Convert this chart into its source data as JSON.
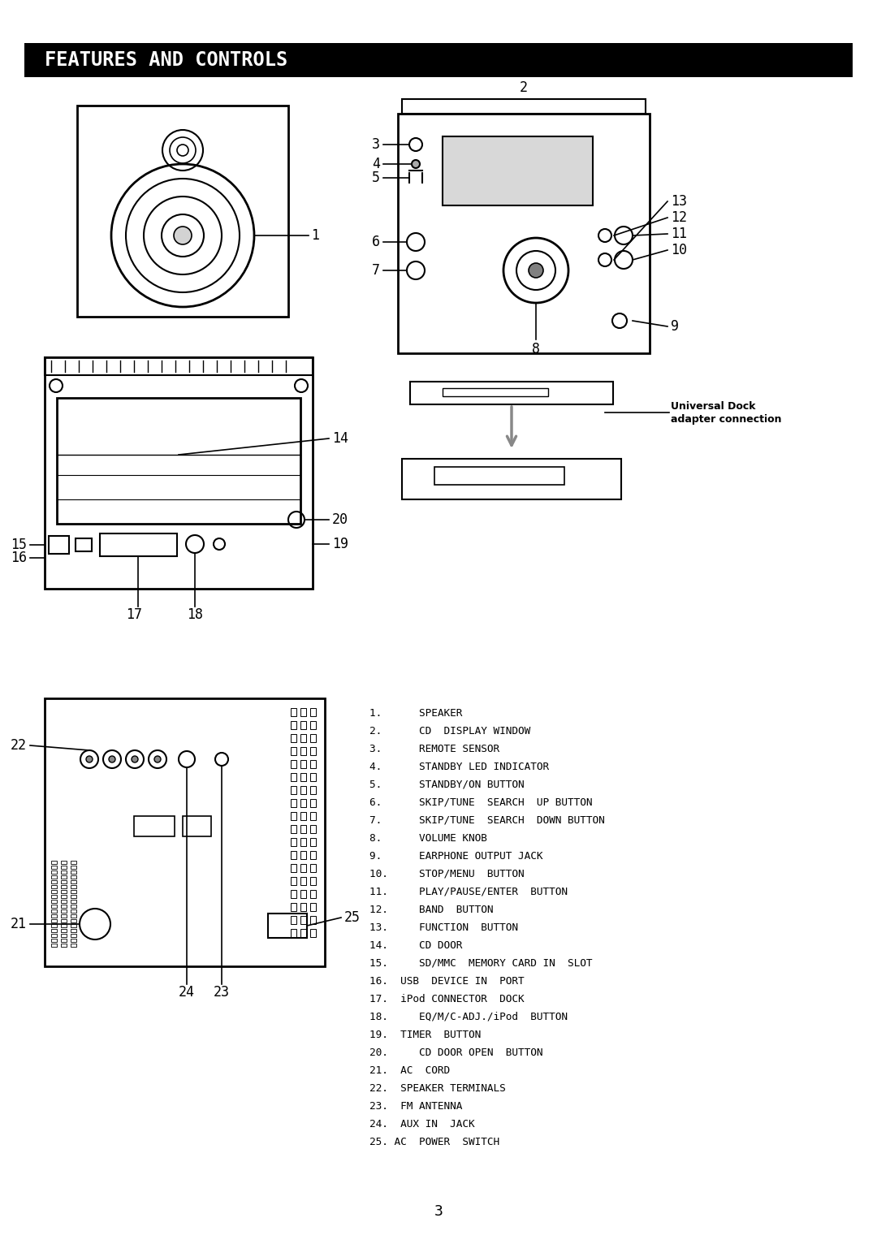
{
  "title": "FEATURES AND CONTROLS",
  "title_bg": "#000000",
  "title_color": "#ffffff",
  "page_number": "3",
  "background_color": "#ffffff",
  "parts_list": [
    "1.      SPEAKER",
    "2.      CD  DISPLAY WINDOW",
    "3.      REMOTE SENSOR",
    "4.      STANDBY LED INDICATOR",
    "5.      STANDBY/ON BUTTON",
    "6.      SKIP/TUNE  SEARCH  UP BUTTON",
    "7.      SKIP/TUNE  SEARCH  DOWN BUTTON",
    "8.      VOLUME KNOB",
    "9.      EARPHONE OUTPUT JACK",
    "10.     STOP/MENU  BUTTON",
    "11.     PLAY/PAUSE/ENTER  BUTTON",
    "12.     BAND  BUTTON",
    "13.     FUNCTION  BUTTON",
    "14.     CD DOOR",
    "15.     SD/MMC  MEMORY CARD IN  SLOT",
    "16.  USB  DEVICE IN  PORT",
    "17.  iPod CONNECTOR  DOCK",
    "18.     EQ/M/C-ADJ./iPod  BUTTON",
    "19.  TIMER  BUTTON",
    "20.     CD DOOR OPEN  BUTTON",
    "21.  AC  CORD",
    "22.  SPEAKER TERMINALS",
    "23.  FM ANTENNA",
    "24.  AUX IN  JACK",
    "25. AC  POWER  SWITCH"
  ],
  "dock_label_line1": "Universal Dock",
  "dock_label_line2": "adapter connection"
}
